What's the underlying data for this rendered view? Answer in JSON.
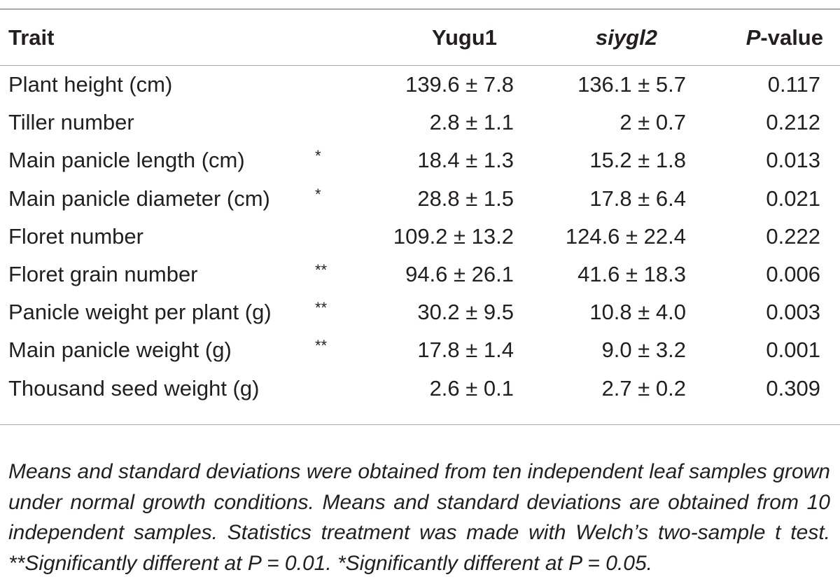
{
  "table": {
    "headers": {
      "trait": "Trait",
      "yugu1": "Yugu1",
      "siygl2": "siygl2",
      "pvalue_italic": "P",
      "pvalue_rest": "-value"
    },
    "rows": [
      {
        "trait": "Plant height (cm)",
        "sig": "",
        "yugu1": "139.6 ± 7.8",
        "siygl2": "136.1 ± 5.7",
        "p": "0.117"
      },
      {
        "trait": "Tiller number",
        "sig": "",
        "yugu1": "2.8 ± 1.1",
        "siygl2": "2 ± 0.7",
        "p": "0.212"
      },
      {
        "trait": "Main panicle length (cm)",
        "sig": "*",
        "yugu1": "18.4 ± 1.3",
        "siygl2": "15.2 ± 1.8",
        "p": "0.013"
      },
      {
        "trait": "Main panicle diameter (cm)",
        "sig": "*",
        "yugu1": "28.8 ± 1.5",
        "siygl2": "17.8 ± 6.4",
        "p": "0.021"
      },
      {
        "trait": "Floret number",
        "sig": "",
        "yugu1": "109.2 ± 13.2",
        "siygl2": "124.6 ± 22.4",
        "p": "0.222"
      },
      {
        "trait": "Floret grain number",
        "sig": "**",
        "yugu1": "94.6 ± 26.1",
        "siygl2": "41.6 ± 18.3",
        "p": "0.006"
      },
      {
        "trait": "Panicle weight per plant (g)",
        "sig": "**",
        "yugu1": "30.2 ± 9.5",
        "siygl2": "10.8 ± 4.0",
        "p": "0.003"
      },
      {
        "trait": "Main panicle weight (g)",
        "sig": "**",
        "yugu1": "17.8 ± 1.4",
        "siygl2": "9.0 ± 3.2",
        "p": "0.001"
      },
      {
        "trait": "Thousand seed weight (g)",
        "sig": "",
        "yugu1": "2.6 ± 0.1",
        "siygl2": "2.7 ± 0.2",
        "p": "0.309"
      }
    ]
  },
  "footnote": "Means and standard deviations were obtained from ten independent leaf samples grown under normal growth conditions. Means and standard deviations are obtained from 10 independent samples. Statistics treatment was made with Welch’s two-sample t test. **Significantly different at P = 0.01. *Significantly different at P = 0.05."
}
